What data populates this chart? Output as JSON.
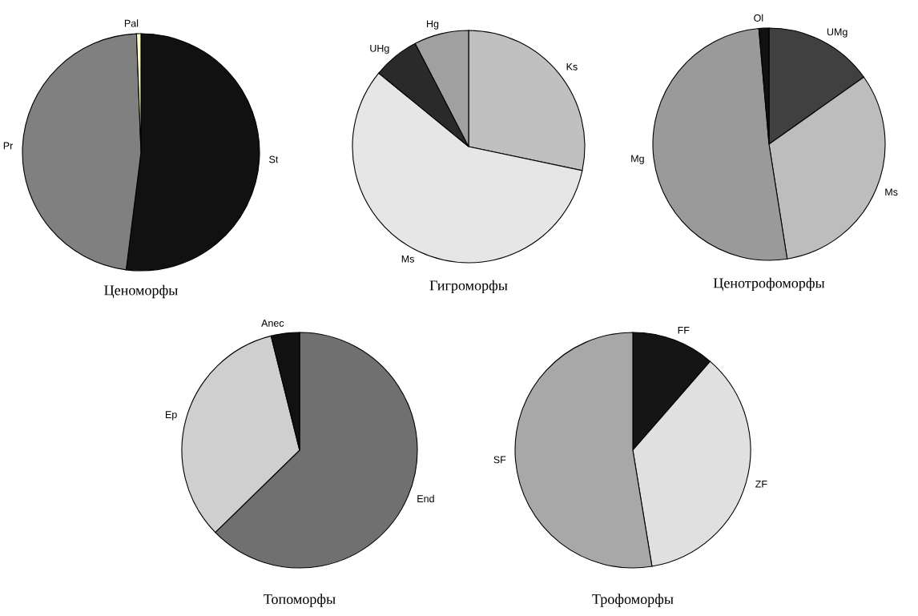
{
  "chart_data": [
    {
      "type": "pie",
      "title": "Ценоморфы",
      "categories": [
        "St",
        "Pr",
        "Pal"
      ],
      "values": [
        52.0,
        47.4,
        0.6
      ],
      "colors": [
        "#111111",
        "#808080",
        "#ffffcc"
      ]
    },
    {
      "type": "pie",
      "title": "Гигроморфы",
      "categories": [
        "Ks",
        "Ms",
        "UHg",
        "Hg"
      ],
      "values": [
        28.3,
        57.6,
        6.5,
        7.6
      ],
      "colors": [
        "#c0c0c0",
        "#e6e6e6",
        "#2a2a2a",
        "#a0a0a0"
      ]
    },
    {
      "type": "pie",
      "title": "Ценотрофоморфы",
      "categories": [
        "UMg",
        "Ms",
        "Mg",
        "Ol"
      ],
      "values": [
        15.2,
        32.3,
        51.1,
        1.4
      ],
      "colors": [
        "#404040",
        "#bdbdbd",
        "#9a9a9a",
        "#111111"
      ]
    },
    {
      "type": "pie",
      "title": "Топоморфы",
      "categories": [
        "End",
        "Ep",
        "Anec"
      ],
      "values": [
        62.7,
        33.4,
        3.9
      ],
      "colors": [
        "#707070",
        "#cfcfcf",
        "#111111"
      ]
    },
    {
      "type": "pie",
      "title": "Трофоморфы",
      "categories": [
        "FF",
        "ZF",
        "SF"
      ],
      "values": [
        11.4,
        36.0,
        52.6
      ],
      "colors": [
        "#151515",
        "#e0e0e0",
        "#a8a8a8"
      ]
    }
  ]
}
